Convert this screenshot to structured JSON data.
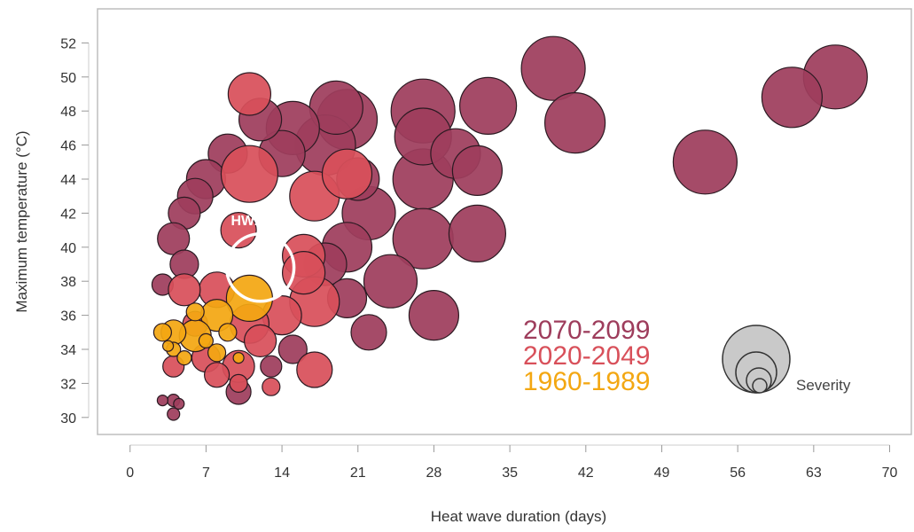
{
  "chart_data": {
    "type": "scatter",
    "xlabel": "Heat wave duration (days)",
    "ylabel": "Maximum temperature (°C)",
    "xlim": [
      -3,
      72
    ],
    "ylim": [
      29,
      54
    ],
    "x_ticks": [
      0,
      7,
      14,
      21,
      28,
      35,
      42,
      49,
      56,
      63,
      70
    ],
    "y_ticks": [
      30,
      32,
      34,
      36,
      38,
      40,
      42,
      44,
      46,
      48,
      50,
      52
    ],
    "grid": false,
    "legend": {
      "placement": "lower-right",
      "entries": [
        {
          "label": "2070-2099",
          "color": "#9e3d5c"
        },
        {
          "label": "2020-2049",
          "color": "#d8505a"
        },
        {
          "label": "1960-1989",
          "color": "#f3a712"
        }
      ],
      "size_label": "Severity"
    },
    "annotation": {
      "label": "HW2003",
      "x": 12,
      "y": 38.8
    },
    "series": [
      {
        "name": "2070-2099",
        "color": "#9e3d5c",
        "points": [
          {
            "x": 65,
            "y": 50,
            "r": 36
          },
          {
            "x": 61,
            "y": 48.8,
            "r": 34
          },
          {
            "x": 53,
            "y": 45,
            "r": 36
          },
          {
            "x": 39,
            "y": 50.5,
            "r": 36
          },
          {
            "x": 41,
            "y": 47.3,
            "r": 34
          },
          {
            "x": 33,
            "y": 48.3,
            "r": 32
          },
          {
            "x": 27,
            "y": 48,
            "r": 36
          },
          {
            "x": 27,
            "y": 46.5,
            "r": 32
          },
          {
            "x": 30,
            "y": 45.5,
            "r": 28
          },
          {
            "x": 27,
            "y": 44,
            "r": 34
          },
          {
            "x": 32,
            "y": 44.5,
            "r": 28
          },
          {
            "x": 27,
            "y": 40.5,
            "r": 34
          },
          {
            "x": 32,
            "y": 40.8,
            "r": 32
          },
          {
            "x": 22,
            "y": 42,
            "r": 30
          },
          {
            "x": 24,
            "y": 38,
            "r": 30
          },
          {
            "x": 28,
            "y": 36,
            "r": 28
          },
          {
            "x": 22,
            "y": 35,
            "r": 20
          },
          {
            "x": 20,
            "y": 47.5,
            "r": 34
          },
          {
            "x": 19,
            "y": 48.2,
            "r": 30
          },
          {
            "x": 15,
            "y": 47,
            "r": 30
          },
          {
            "x": 12,
            "y": 47.5,
            "r": 24
          },
          {
            "x": 18,
            "y": 46,
            "r": 34
          },
          {
            "x": 14,
            "y": 45.5,
            "r": 26
          },
          {
            "x": 20,
            "y": 40,
            "r": 28
          },
          {
            "x": 18,
            "y": 39,
            "r": 24
          },
          {
            "x": 20,
            "y": 37,
            "r": 22
          },
          {
            "x": 21,
            "y": 44,
            "r": 24
          },
          {
            "x": 9,
            "y": 45.5,
            "r": 22
          },
          {
            "x": 7,
            "y": 44,
            "r": 22
          },
          {
            "x": 6,
            "y": 43,
            "r": 20
          },
          {
            "x": 5,
            "y": 42,
            "r": 18
          },
          {
            "x": 4,
            "y": 40.5,
            "r": 18
          },
          {
            "x": 5,
            "y": 39,
            "r": 16
          },
          {
            "x": 3,
            "y": 37.8,
            "r": 12
          },
          {
            "x": 10,
            "y": 31.5,
            "r": 14
          },
          {
            "x": 13,
            "y": 33,
            "r": 12
          },
          {
            "x": 15,
            "y": 34,
            "r": 16
          },
          {
            "x": 3,
            "y": 31,
            "r": 6
          },
          {
            "x": 4,
            "y": 31,
            "r": 7
          },
          {
            "x": 4.5,
            "y": 30.8,
            "r": 6
          },
          {
            "x": 4,
            "y": 30.2,
            "r": 7
          }
        ]
      },
      {
        "name": "2020-2049",
        "color": "#d8505a",
        "points": [
          {
            "x": 11,
            "y": 49,
            "r": 24
          },
          {
            "x": 11,
            "y": 44.3,
            "r": 32
          },
          {
            "x": 17,
            "y": 43,
            "r": 28
          },
          {
            "x": 20,
            "y": 44.3,
            "r": 28
          },
          {
            "x": 10,
            "y": 41,
            "r": 20
          },
          {
            "x": 16,
            "y": 39.5,
            "r": 24
          },
          {
            "x": 17,
            "y": 36.8,
            "r": 28
          },
          {
            "x": 16,
            "y": 38.5,
            "r": 24
          },
          {
            "x": 14,
            "y": 36,
            "r": 22
          },
          {
            "x": 11,
            "y": 35.5,
            "r": 22
          },
          {
            "x": 8,
            "y": 37.5,
            "r": 20
          },
          {
            "x": 5,
            "y": 37.5,
            "r": 18
          },
          {
            "x": 7,
            "y": 33.5,
            "r": 16
          },
          {
            "x": 10,
            "y": 33,
            "r": 18
          },
          {
            "x": 12,
            "y": 34.5,
            "r": 18
          },
          {
            "x": 17,
            "y": 32.8,
            "r": 20
          },
          {
            "x": 6,
            "y": 35.5,
            "r": 14
          },
          {
            "x": 4,
            "y": 33,
            "r": 12
          },
          {
            "x": 8,
            "y": 32.5,
            "r": 14
          },
          {
            "x": 10,
            "y": 32,
            "r": 10
          },
          {
            "x": 13,
            "y": 31.8,
            "r": 10
          }
        ]
      },
      {
        "name": "1960-1989",
        "color": "#f3a712",
        "points": [
          {
            "x": 11,
            "y": 37,
            "r": 26
          },
          {
            "x": 8,
            "y": 36,
            "r": 18
          },
          {
            "x": 6,
            "y": 34.8,
            "r": 18
          },
          {
            "x": 4,
            "y": 35,
            "r": 14
          },
          {
            "x": 3,
            "y": 35,
            "r": 10
          },
          {
            "x": 6,
            "y": 36.2,
            "r": 10
          },
          {
            "x": 8,
            "y": 33.8,
            "r": 10
          },
          {
            "x": 4,
            "y": 34,
            "r": 8
          },
          {
            "x": 5,
            "y": 33.5,
            "r": 8
          },
          {
            "x": 7,
            "y": 34.5,
            "r": 8
          },
          {
            "x": 9,
            "y": 35,
            "r": 10
          },
          {
            "x": 3.5,
            "y": 34.2,
            "r": 6
          },
          {
            "x": 10,
            "y": 33.5,
            "r": 6
          }
        ]
      }
    ]
  }
}
